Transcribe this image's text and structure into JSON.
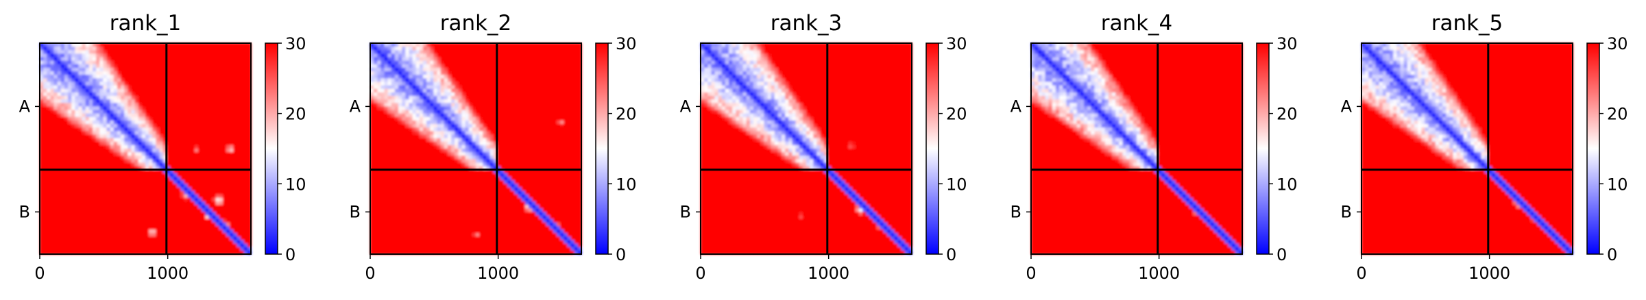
{
  "chart_data": [
    {
      "type": "heatmap",
      "title": "rank_1",
      "xticks": [
        0,
        1000
      ],
      "xtick_labels": [
        "0",
        "1000"
      ],
      "xlim": [
        0,
        1650
      ],
      "ylim": [
        1650,
        0
      ],
      "chain_boundary": 990,
      "ytick_labels": [
        "A",
        "B"
      ],
      "colorbar": {
        "range": [
          0,
          30
        ],
        "ticks": [
          0,
          10,
          20,
          30
        ],
        "tick_labels": [
          "0",
          "10",
          "20",
          "30"
        ],
        "colormap": "bwr"
      },
      "blue_block": {
        "start": 0,
        "end": 990,
        "coverage": 0.55,
        "diag_band": 80
      },
      "diagonal_band": 18,
      "interface_features": [
        {
          "x": 930,
          "y": 900,
          "r": 50,
          "value": 6
        },
        {
          "x": 1150,
          "y": 1180,
          "r": 45,
          "value": 14
        },
        {
          "x": 1400,
          "y": 1230,
          "r": 40,
          "value": 12
        },
        {
          "x": 1320,
          "y": 1350,
          "r": 40,
          "value": 12
        },
        {
          "x": 1450,
          "y": 1420,
          "r": 35,
          "value": 14
        },
        {
          "x": 880,
          "y": 1480,
          "r": 30,
          "value": 12
        },
        {
          "x": 1490,
          "y": 830,
          "r": 35,
          "value": 14
        },
        {
          "x": 1220,
          "y": 830,
          "r": 30,
          "value": 18
        }
      ]
    },
    {
      "type": "heatmap",
      "title": "rank_2",
      "xticks": [
        0,
        1000
      ],
      "xtick_labels": [
        "0",
        "1000"
      ],
      "xlim": [
        0,
        1650
      ],
      "ylim": [
        1650,
        0
      ],
      "chain_boundary": 990,
      "ytick_labels": [
        "A",
        "B"
      ],
      "colorbar": {
        "range": [
          0,
          30
        ],
        "ticks": [
          0,
          10,
          20,
          30
        ],
        "tick_labels": [
          "0",
          "10",
          "20",
          "30"
        ],
        "colormap": "bwr"
      },
      "blue_block": {
        "start": 0,
        "end": 990,
        "coverage": 0.53,
        "diag_band": 80
      },
      "diagonal_band": 18,
      "interface_features": [
        {
          "x": 920,
          "y": 900,
          "r": 45,
          "value": 6
        },
        {
          "x": 1250,
          "y": 1270,
          "r": 45,
          "value": 10
        },
        {
          "x": 1450,
          "y": 1440,
          "r": 35,
          "value": 12
        },
        {
          "x": 830,
          "y": 1500,
          "r": 30,
          "value": 18
        },
        {
          "x": 1490,
          "y": 620,
          "r": 35,
          "value": 18
        }
      ]
    },
    {
      "type": "heatmap",
      "title": "rank_3",
      "xticks": [
        0,
        1000
      ],
      "xtick_labels": [
        "0",
        "1000"
      ],
      "xlim": [
        0,
        1650
      ],
      "ylim": [
        1650,
        0
      ],
      "chain_boundary": 990,
      "ytick_labels": [
        "A",
        "B"
      ],
      "colorbar": {
        "range": [
          0,
          30
        ],
        "ticks": [
          0,
          10,
          20,
          30
        ],
        "tick_labels": [
          "0",
          "10",
          "20",
          "30"
        ],
        "colormap": "bwr"
      },
      "blue_block": {
        "start": 0,
        "end": 990,
        "coverage": 0.55,
        "diag_band": 80
      },
      "diagonal_band": 18,
      "interface_features": [
        {
          "x": 920,
          "y": 900,
          "r": 50,
          "value": 6
        },
        {
          "x": 1250,
          "y": 1300,
          "r": 40,
          "value": 12
        },
        {
          "x": 1400,
          "y": 1420,
          "r": 35,
          "value": 14
        },
        {
          "x": 1180,
          "y": 800,
          "r": 30,
          "value": 18
        },
        {
          "x": 780,
          "y": 1350,
          "r": 30,
          "value": 20
        }
      ]
    },
    {
      "type": "heatmap",
      "title": "rank_4",
      "xticks": [
        0,
        1000
      ],
      "xtick_labels": [
        "0",
        "1000"
      ],
      "xlim": [
        0,
        1650
      ],
      "ylim": [
        1650,
        0
      ],
      "chain_boundary": 990,
      "ytick_labels": [
        "A",
        "B"
      ],
      "colorbar": {
        "range": [
          0,
          30
        ],
        "ticks": [
          0,
          10,
          20,
          30
        ],
        "tick_labels": [
          "0",
          "10",
          "20",
          "30"
        ],
        "colormap": "bwr"
      },
      "blue_block": {
        "start": 0,
        "end": 990,
        "coverage": 0.55,
        "diag_band": 80
      },
      "diagonal_band": 18,
      "interface_features": [
        {
          "x": 920,
          "y": 900,
          "r": 50,
          "value": 6
        },
        {
          "x": 1300,
          "y": 1320,
          "r": 35,
          "value": 14
        },
        {
          "x": 1480,
          "y": 1480,
          "r": 30,
          "value": 12
        }
      ]
    },
    {
      "type": "heatmap",
      "title": "rank_5",
      "xticks": [
        0,
        1000
      ],
      "xtick_labels": [
        "0",
        "1000"
      ],
      "xlim": [
        0,
        1650
      ],
      "ylim": [
        1650,
        0
      ],
      "chain_boundary": 990,
      "ytick_labels": [
        "A",
        "B"
      ],
      "colorbar": {
        "range": [
          0,
          30
        ],
        "ticks": [
          0,
          10,
          20,
          30
        ],
        "tick_labels": [
          "0",
          "10",
          "20",
          "30"
        ],
        "colormap": "bwr"
      },
      "blue_block": {
        "start": 0,
        "end": 990,
        "coverage": 0.55,
        "diag_band": 80
      },
      "diagonal_band": 18,
      "interface_features": [
        {
          "x": 920,
          "y": 900,
          "r": 45,
          "value": 6
        },
        {
          "x": 1230,
          "y": 1250,
          "r": 40,
          "value": 12
        },
        {
          "x": 1360,
          "y": 1380,
          "r": 30,
          "value": 14
        }
      ]
    }
  ]
}
